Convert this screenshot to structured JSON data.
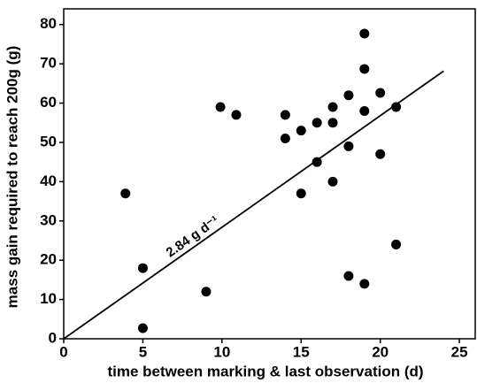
{
  "chart_data": {
    "type": "scatter",
    "x_label": "time between marking & last observation (d)",
    "y_label": "mass gain required to reach 200g (g)",
    "x": [
      3.9,
      5,
      5,
      9,
      9.9,
      10.9,
      14,
      14,
      15,
      15,
      16,
      16,
      17,
      17,
      17,
      18,
      18,
      18,
      19,
      19,
      19,
      19,
      20,
      20,
      21,
      21
    ],
    "values": [
      37,
      18,
      2.7,
      12,
      59,
      57,
      57,
      51,
      53,
      37,
      55,
      45,
      59,
      55,
      40,
      62,
      49,
      16,
      77.7,
      68.7,
      58,
      14,
      62.6,
      47,
      59,
      24
    ],
    "color": "#000000",
    "fit": {
      "x": [
        0,
        24
      ],
      "values": [
        0,
        68.16
      ],
      "label": "2.84 g d⁻¹"
    },
    "xlim": [
      0,
      26
    ],
    "ylim": [
      0,
      84
    ],
    "xticks": [
      0,
      5,
      10,
      15,
      20,
      25
    ],
    "yticks": [
      0,
      10,
      20,
      30,
      40,
      50,
      60,
      70,
      80
    ],
    "grid": false
  }
}
